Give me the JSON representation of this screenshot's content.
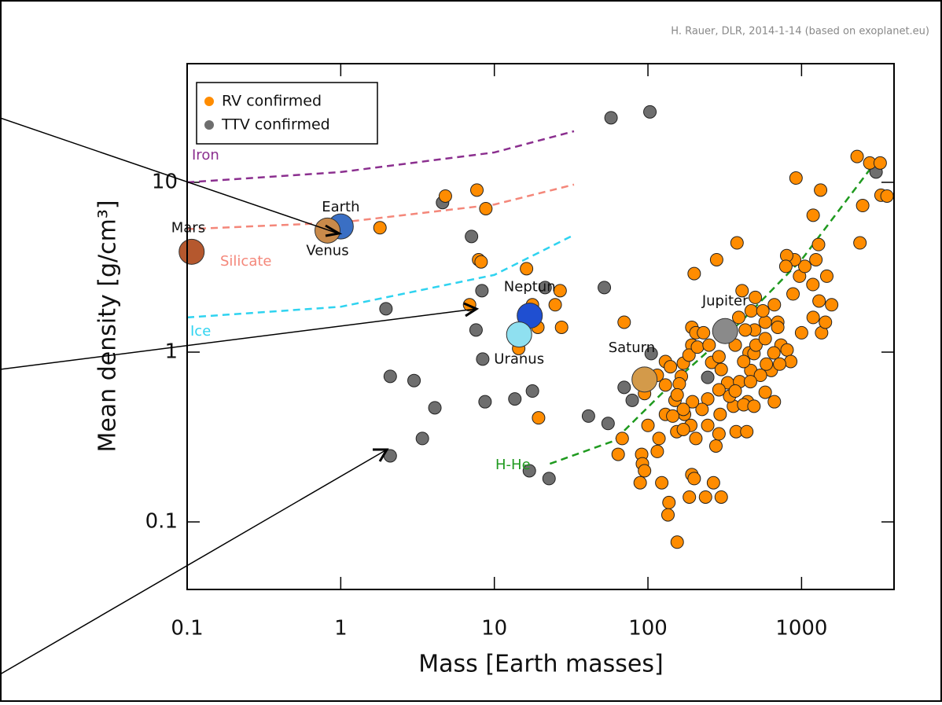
{
  "chart_data": {
    "type": "scatter",
    "credit": "H. Rauer, DLR, 2014-1-14 (based on exoplanet.eu)",
    "xlabel": "Mass [Earth masses]",
    "ylabel": "Mean density [g/cm³]",
    "xscale": "log",
    "yscale": "log",
    "xlim": [
      0.1,
      4000
    ],
    "ylim": [
      0.04,
      50
    ],
    "xticks": [
      0.1,
      1,
      10,
      100,
      1000
    ],
    "yticks": [
      0.1,
      1,
      10
    ],
    "legend": "top-left",
    "series": [
      {
        "name": "RV confirmed",
        "color": "#ff8c00",
        "x": [
          1.8,
          4.8,
          7.7,
          8.8,
          7.9,
          8.2,
          6.9,
          16.2,
          17.7,
          26.8,
          24.9,
          27.4,
          14.4,
          19.2,
          19.4,
          70,
          68,
          64,
          91,
          92,
          95,
          89,
          123,
          137,
          135,
          155,
          154,
          150,
          130,
          173,
          190,
          193,
          186,
          200,
          237,
          267,
          300,
          277,
          290,
          360,
          375,
          440,
          445,
          467,
          580,
          665,
          635,
          455,
          540,
          193,
          193,
          200,
          280,
          380,
          410,
          500,
          665,
          700,
          880,
          970,
          1050,
          1185,
          1240,
          1290,
          1460,
          1570,
          1300,
          1190,
          1350,
          1430,
          1000,
          900,
          800,
          790,
          1190,
          1330,
          920,
          2300,
          2780,
          3250,
          3290,
          3600,
          2500,
          2400,
          130,
          140,
          165,
          170,
          185,
          210,
          205,
          230,
          250,
          260,
          290,
          300,
          330,
          340,
          290,
          245,
          225,
          195,
          160,
          155,
          145,
          170,
          205,
          245,
          295,
          395,
          420,
          490,
          505,
          580,
          580,
          700,
          735,
          660,
          805,
          850,
          720,
          590,
          495,
          430,
          370,
          470,
          560,
          390,
          465,
          370,
          420,
          490,
          170,
          130,
          115,
          95,
          100,
          118,
          115
        ],
        "values": [
          5.4,
          8.3,
          9.0,
          7.0,
          3.5,
          3.4,
          1.9,
          3.1,
          1.9,
          2.3,
          1.9,
          1.4,
          1.05,
          1.4,
          0.41,
          1.5,
          0.31,
          0.25,
          0.25,
          0.22,
          0.2,
          0.17,
          0.17,
          0.13,
          0.11,
          0.076,
          0.34,
          0.52,
          0.43,
          0.43,
          0.37,
          0.19,
          0.14,
          0.18,
          0.14,
          0.17,
          0.14,
          0.28,
          0.33,
          0.48,
          0.34,
          0.34,
          0.51,
          0.78,
          0.58,
          0.51,
          0.78,
          0.99,
          0.73,
          1.1,
          1.4,
          2.9,
          3.5,
          4.4,
          2.3,
          2.1,
          1.9,
          1.5,
          2.2,
          2.8,
          3.2,
          2.5,
          3.5,
          4.3,
          2.8,
          1.9,
          2.0,
          1.6,
          1.3,
          1.5,
          1.3,
          3.5,
          3.7,
          3.2,
          6.4,
          9.0,
          10.6,
          14.2,
          13,
          13,
          8.4,
          8.3,
          7.3,
          4.4,
          0.88,
          0.82,
          0.72,
          0.86,
          0.96,
          1.07,
          1.3,
          1.3,
          1.1,
          0.87,
          0.94,
          0.79,
          0.66,
          0.55,
          0.6,
          0.53,
          0.46,
          0.51,
          0.65,
          0.56,
          0.42,
          0.35,
          0.31,
          0.37,
          0.43,
          0.67,
          0.88,
          0.98,
          1.1,
          1.2,
          1.5,
          1.4,
          1.1,
          0.99,
          1.03,
          0.88,
          0.85,
          0.85,
          1.35,
          1.35,
          1.1,
          1.75,
          1.75,
          1.6,
          0.67,
          0.59,
          0.49,
          0.48,
          0.46,
          0.64,
          0.73,
          0.57,
          0.37,
          0.31,
          0.26
        ]
      },
      {
        "name": "TTV confirmed",
        "color": "#6e6e6e",
        "x": [
          4.6,
          7.1,
          8.3,
          7.6,
          8.4,
          8.7,
          13.6,
          17.7,
          16.9,
          22.7,
          21.4,
          52,
          105,
          55,
          41,
          1.97,
          2.1,
          3.0,
          4.1,
          3.4,
          2.1,
          57.5,
          103,
          3055,
          70,
          79,
          245
        ],
        "values": [
          7.6,
          4.8,
          2.3,
          1.35,
          0.91,
          0.51,
          0.53,
          0.59,
          0.2,
          0.18,
          2.4,
          2.4,
          0.98,
          0.38,
          0.42,
          1.8,
          0.72,
          0.68,
          0.47,
          0.31,
          0.245,
          24,
          26,
          11.5,
          0.62,
          0.52,
          0.71
        ]
      }
    ],
    "curves": [
      {
        "name": "Iron",
        "color": "#8b2f8f",
        "x": [
          0.1,
          1,
          10,
          33
        ],
        "values": [
          10,
          11.5,
          15,
          20
        ]
      },
      {
        "name": "Silicate",
        "color": "#f4877a",
        "x": [
          0.1,
          1,
          10,
          33
        ],
        "values": [
          5.3,
          5.8,
          7.4,
          9.7
        ]
      },
      {
        "name": "Ice",
        "color": "#2fd3f0",
        "x": [
          0.1,
          1,
          10,
          33
        ],
        "values": [
          1.6,
          1.85,
          2.85,
          4.9
        ]
      },
      {
        "name": "H-He",
        "color": "#1f9a1f",
        "x": [
          23,
          60,
          140,
          400,
          1000,
          2800
        ],
        "values": [
          0.22,
          0.3,
          0.64,
          1.5,
          3.5,
          12
        ]
      }
    ],
    "planets": [
      {
        "name": "Mars",
        "color": "#b5582e",
        "mass": 0.107,
        "density": 3.9
      },
      {
        "name": "Earth",
        "color": "#3a6fc4",
        "mass": 1,
        "density": 5.5
      },
      {
        "name": "Venus",
        "color": "#c98a4a",
        "mass": 0.82,
        "density": 5.2
      },
      {
        "name": "Neptun",
        "color": "#1f4fd1",
        "mass": 17,
        "density": 1.64
      },
      {
        "name": "Uranus",
        "color": "#8fe0f0",
        "mass": 14.5,
        "density": 1.27
      },
      {
        "name": "Jupiter",
        "color": "#8a8a8a",
        "mass": 318,
        "density": 1.33
      },
      {
        "name": "Saturn",
        "color": "#d39a4a",
        "mass": 95,
        "density": 0.69
      }
    ]
  }
}
